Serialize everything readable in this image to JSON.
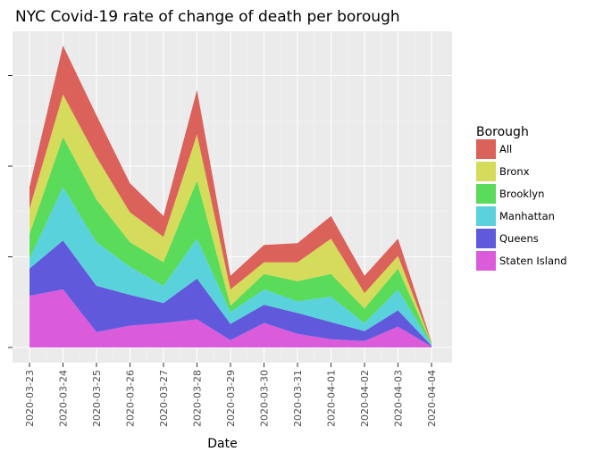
{
  "chart_data": {
    "type": "area",
    "stacked": true,
    "title": "NYC Covid-19 rate of change of death per borough",
    "xlabel": "Date",
    "ylabel": "",
    "x": [
      "2020-03-23",
      "2020-03-24",
      "2020-03-25",
      "2020-03-26",
      "2020-03-27",
      "2020-03-28",
      "2020-03-29",
      "2020-03-30",
      "2020-03-31",
      "2020-04-01",
      "2020-04-02",
      "2020-04-03",
      "2020-04-04"
    ],
    "y_ticks": [
      0,
      1,
      2,
      3
    ],
    "ylim": [
      -0.15,
      3.5
    ],
    "grid": true,
    "legend": {
      "title": "Borough",
      "placement": "right"
    },
    "series": [
      {
        "name": "Staten Island",
        "color": "#DB5CDB",
        "values": [
          0.57,
          0.64,
          0.17,
          0.24,
          0.27,
          0.31,
          0.08,
          0.27,
          0.15,
          0.09,
          0.07,
          0.23,
          0.01
        ]
      },
      {
        "name": "Queens",
        "color": "#6159DB",
        "values": [
          0.3,
          0.54,
          0.51,
          0.34,
          0.22,
          0.45,
          0.18,
          0.2,
          0.23,
          0.19,
          0.11,
          0.18,
          0.01
        ]
      },
      {
        "name": "Manhattan",
        "color": "#5AD2DB",
        "values": [
          0.11,
          0.59,
          0.48,
          0.31,
          0.19,
          0.44,
          0.13,
          0.17,
          0.13,
          0.28,
          0.09,
          0.23,
          0.01
        ]
      },
      {
        "name": "Brooklyn",
        "color": "#5ADB5A",
        "values": [
          0.27,
          0.55,
          0.47,
          0.27,
          0.26,
          0.64,
          0.07,
          0.17,
          0.22,
          0.25,
          0.16,
          0.23,
          0.01
        ]
      },
      {
        "name": "Bronx",
        "color": "#D5DB5A",
        "values": [
          0.28,
          0.47,
          0.47,
          0.33,
          0.28,
          0.51,
          0.18,
          0.13,
          0.21,
          0.39,
          0.17,
          0.14,
          0.01
        ]
      },
      {
        "name": "All",
        "color": "#DB615B",
        "values": [
          0.24,
          0.54,
          0.46,
          0.32,
          0.23,
          0.49,
          0.15,
          0.19,
          0.21,
          0.25,
          0.19,
          0.19,
          0.01
        ]
      }
    ]
  }
}
